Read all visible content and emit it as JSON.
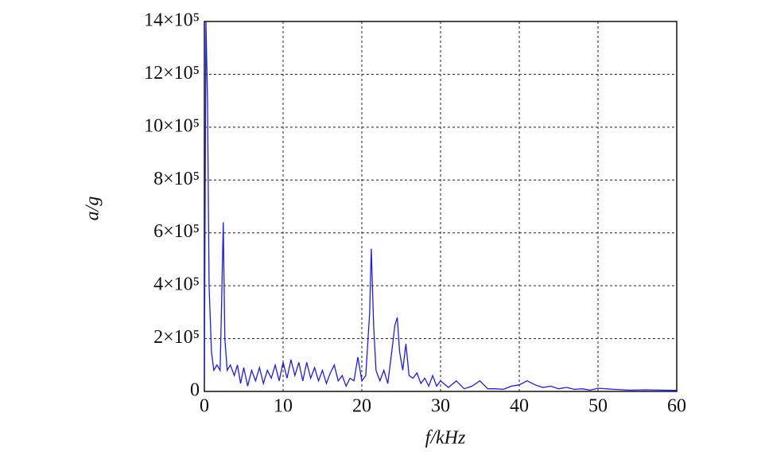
{
  "chart_data": {
    "type": "line",
    "xlabel": "f/kHz",
    "ylabel": "a/g",
    "x": [
      0,
      0.2,
      0.4,
      0.6,
      0.9,
      1.2,
      1.6,
      2.0,
      2.2,
      2.4,
      2.6,
      2.9,
      3.3,
      3.8,
      4.2,
      4.6,
      5.0,
      5.5,
      6.0,
      6.5,
      7.0,
      7.5,
      8.0,
      8.5,
      9.0,
      9.5,
      10.0,
      10.5,
      11.0,
      11.5,
      12.0,
      12.5,
      13.0,
      13.5,
      14.0,
      14.5,
      15.0,
      15.5,
      16.0,
      16.5,
      17.0,
      17.5,
      18.0,
      18.5,
      19.0,
      19.5,
      20.0,
      20.5,
      21.0,
      21.2,
      21.5,
      21.8,
      22.3,
      22.8,
      23.3,
      23.8,
      24.2,
      24.5,
      24.8,
      25.2,
      25.6,
      26.0,
      26.5,
      27.0,
      27.5,
      28.0,
      28.5,
      29.0,
      29.5,
      30,
      31,
      32,
      33,
      34,
      35,
      36,
      37,
      38,
      39,
      40,
      41,
      42,
      43,
      44,
      45,
      46,
      47,
      48,
      49,
      50,
      52,
      54,
      56,
      58,
      60
    ],
    "values": [
      50000,
      1400000,
      1100000,
      400000,
      150000,
      80000,
      100000,
      80000,
      350000,
      640000,
      200000,
      80000,
      100000,
      60000,
      100000,
      30000,
      90000,
      20000,
      80000,
      40000,
      90000,
      30000,
      80000,
      50000,
      100000,
      40000,
      110000,
      50000,
      120000,
      60000,
      110000,
      40000,
      110000,
      50000,
      90000,
      40000,
      80000,
      30000,
      70000,
      100000,
      40000,
      60000,
      20000,
      50000,
      40000,
      130000,
      40000,
      60000,
      300000,
      540000,
      250000,
      80000,
      40000,
      80000,
      30000,
      150000,
      250000,
      280000,
      150000,
      80000,
      180000,
      60000,
      50000,
      70000,
      30000,
      50000,
      20000,
      60000,
      20000,
      40000,
      15000,
      40000,
      10000,
      20000,
      40000,
      10000,
      10000,
      8000,
      20000,
      25000,
      40000,
      25000,
      15000,
      20000,
      10000,
      15000,
      8000,
      10000,
      5000,
      12000,
      8000,
      5000,
      6000,
      5000,
      4000
    ],
    "color": "#1a1aff",
    "xlim": [
      0,
      60
    ],
    "xticks": [
      0,
      10,
      20,
      30,
      40,
      50,
      60
    ],
    "ylim": [
      0,
      1400000
    ],
    "yticks": [
      0,
      {
        "value": 200000,
        "label": "2×10⁵"
      },
      {
        "value": 400000,
        "label": "4×10⁵"
      },
      {
        "value": 600000,
        "label": "6×10⁵"
      },
      {
        "value": 800000,
        "label": "8×10⁵"
      },
      {
        "value": 1000000,
        "label": "10×10⁵"
      },
      {
        "value": 1200000,
        "label": "12×10⁵"
      },
      {
        "value": 1400000,
        "label": "14×10⁵"
      }
    ],
    "grid": true
  }
}
